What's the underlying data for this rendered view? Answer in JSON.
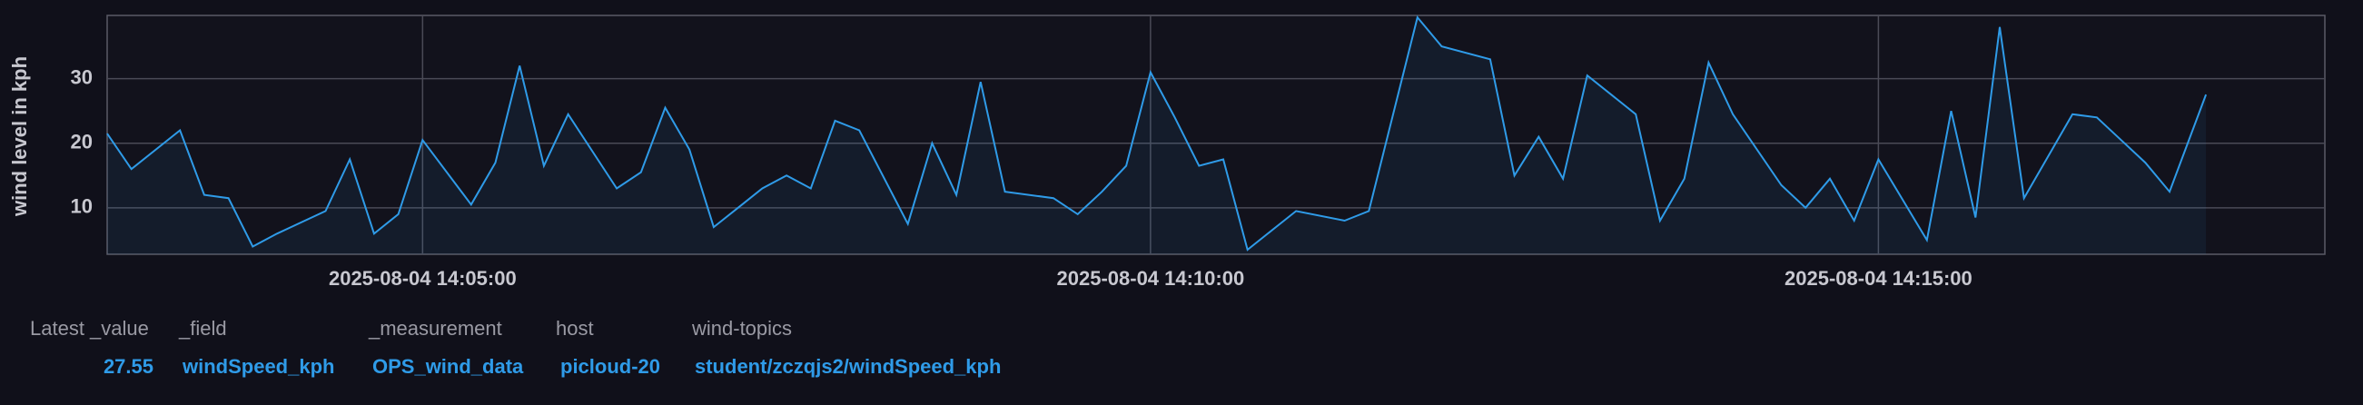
{
  "chart_data": {
    "type": "line",
    "y_label": "wind level in kph",
    "x": [
      "2025-08-04 14:02:50",
      "2025-08-04 14:03:00",
      "2025-08-04 14:03:20",
      "2025-08-04 14:03:30",
      "2025-08-04 14:03:40",
      "2025-08-04 14:03:50",
      "2025-08-04 14:04:00",
      "2025-08-04 14:04:20",
      "2025-08-04 14:04:30",
      "2025-08-04 14:04:40",
      "2025-08-04 14:04:50",
      "2025-08-04 14:05:00",
      "2025-08-04 14:05:20",
      "2025-08-04 14:05:30",
      "2025-08-04 14:05:40",
      "2025-08-04 14:05:50",
      "2025-08-04 14:06:00",
      "2025-08-04 14:06:20",
      "2025-08-04 14:06:30",
      "2025-08-04 14:06:40",
      "2025-08-04 14:06:50",
      "2025-08-04 14:07:00",
      "2025-08-04 14:07:10",
      "2025-08-04 14:07:20",
      "2025-08-04 14:07:30",
      "2025-08-04 14:07:40",
      "2025-08-04 14:07:50",
      "2025-08-04 14:08:00",
      "2025-08-04 14:08:20",
      "2025-08-04 14:08:30",
      "2025-08-04 14:08:40",
      "2025-08-04 14:08:50",
      "2025-08-04 14:09:00",
      "2025-08-04 14:09:20",
      "2025-08-04 14:09:30",
      "2025-08-04 14:09:40",
      "2025-08-04 14:09:50",
      "2025-08-04 14:10:00",
      "2025-08-04 14:10:10",
      "2025-08-04 14:10:20",
      "2025-08-04 14:10:30",
      "2025-08-04 14:10:40",
      "2025-08-04 14:11:00",
      "2025-08-04 14:11:20",
      "2025-08-04 14:11:30",
      "2025-08-04 14:11:50",
      "2025-08-04 14:12:00",
      "2025-08-04 14:12:20",
      "2025-08-04 14:12:30",
      "2025-08-04 14:12:40",
      "2025-08-04 14:12:50",
      "2025-08-04 14:13:00",
      "2025-08-04 14:13:20",
      "2025-08-04 14:13:30",
      "2025-08-04 14:13:40",
      "2025-08-04 14:13:50",
      "2025-08-04 14:14:00",
      "2025-08-04 14:14:20",
      "2025-08-04 14:14:30",
      "2025-08-04 14:14:40",
      "2025-08-04 14:14:50",
      "2025-08-04 14:15:00",
      "2025-08-04 14:15:20",
      "2025-08-04 14:15:30",
      "2025-08-04 14:15:40",
      "2025-08-04 14:15:50",
      "2025-08-04 14:16:00",
      "2025-08-04 14:16:20",
      "2025-08-04 14:16:30",
      "2025-08-04 14:16:40",
      "2025-08-04 14:16:50",
      "2025-08-04 14:17:00",
      "2025-08-04 14:17:15"
    ],
    "series": [
      {
        "name": "windSpeed_kph",
        "color": "#2f9be8",
        "values": [
          21.5,
          16,
          22,
          12,
          11.5,
          4,
          6,
          9.5,
          17.5,
          6,
          9,
          20.5,
          10.5,
          17,
          32,
          16.5,
          24.5,
          13,
          15.5,
          25.5,
          19,
          7,
          10,
          13,
          15,
          13,
          23.5,
          22,
          7.5,
          20,
          12,
          29.5,
          12.5,
          11.5,
          9,
          12.5,
          16.5,
          31,
          24,
          16.5,
          17.5,
          3.5,
          9.5,
          8,
          9.5,
          39.5,
          35,
          33,
          15,
          21,
          14.5,
          30.5,
          24.5,
          8,
          14.5,
          32.5,
          24.5,
          13.5,
          10,
          14.5,
          8,
          17.5,
          5,
          25,
          8.5,
          38,
          11.5,
          24.5,
          24,
          20.5,
          17,
          12.5,
          27.55
        ]
      }
    ],
    "xlim": [
      "2025-08-04 14:02:50",
      "2025-08-04 14:18:04"
    ],
    "xticks": [
      "2025-08-04 14:05:00",
      "2025-08-04 14:10:00",
      "2025-08-04 14:15:00"
    ],
    "ylim": [
      2.8,
      39.8
    ],
    "yticks": [
      10,
      20,
      30
    ],
    "grid": true
  },
  "legend_table": {
    "headers": [
      "Latest _value",
      "_field",
      "_measurement",
      "host",
      "wind-topics"
    ],
    "row": [
      27.55,
      "windSpeed_kph",
      "OPS_wind_data",
      "picloud-20",
      "student/zczqjs2/windSpeed_kph"
    ]
  }
}
